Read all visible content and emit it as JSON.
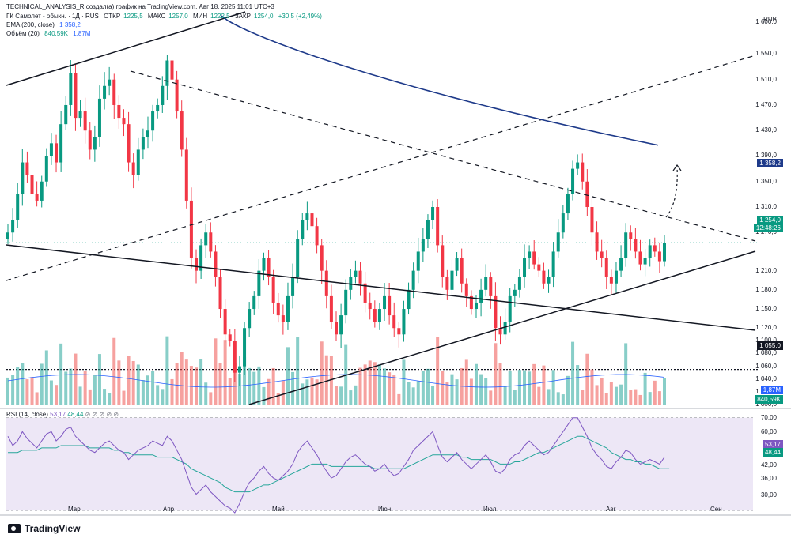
{
  "header": {
    "author_line": "TECHNICAL_ANALYSIS_R создал(а) график на TradingView.com, Авг 18, 2025 11:01 UTC+3",
    "symbol": "ГК Самолет - обыкн. · 1Д · RUS",
    "ohlc": {
      "open_label": "ОТКР",
      "open": "1225,5",
      "high_label": "МАКС",
      "high": "1257,0",
      "low_label": "МИН",
      "low": "1222,5",
      "close_label": "ЗАКР",
      "close": "1254,0",
      "change": "+30,5 (+2,49%)"
    },
    "ema_label": "EMA (200, close)",
    "ema_value": "1 358,2",
    "volume_label": "Объём (20)",
    "volume_value": "840,59K",
    "volume_ma": "1,87M"
  },
  "currency": "RUB",
  "price_axis": [
    "1 600,0",
    "1 550,0",
    "1 510,0",
    "1 470,0",
    "1 430,0",
    "1 390,0",
    "1 350,0",
    "1 310,0",
    "1 270,0",
    "1 210,0",
    "1 180,0",
    "1 150,0",
    "1 120,0",
    "1 100,0",
    "1 080,0",
    "1 060,0",
    "1 040,0",
    "1 020,0",
    "1 000,0"
  ],
  "badges": {
    "ema": "1 358,2",
    "last_price": "1 254,0",
    "countdown": "12:48:26",
    "level": "1 055,0",
    "vol_ma": "1,87M",
    "vol": "840,59K",
    "rsi": "53,17",
    "rsi_ma": "48,44"
  },
  "rsi": {
    "label": "RSI (14, close)",
    "value": "53,17",
    "ma": "48,44",
    "axis": [
      "70,00",
      "60,00",
      "53,17",
      "48,44",
      "42,00",
      "36,00",
      "30,00"
    ]
  },
  "time_axis": [
    "Мар",
    "Апр",
    "Май",
    "Июн",
    "Июл",
    "Авг",
    "Сен"
  ],
  "brand": "TradingView",
  "colors": {
    "up": "#089981",
    "down": "#f23645",
    "ema": "#1e3a8a",
    "rsi_band": "#ede7f6",
    "rsi_line": "#7e57c2"
  },
  "chart_data": {
    "type": "candlestick",
    "series_name": "ГК Самолет - обыкн.",
    "last_close": 1254.0,
    "ema200": 1358.2,
    "support_level": 1055.0,
    "x_labels": [
      "Мар",
      "Апр",
      "Май",
      "Июн",
      "Июл",
      "Авг",
      "Сен"
    ],
    "ylim": [
      1000,
      1620
    ],
    "closes": [
      1270,
      1290,
      1330,
      1380,
      1360,
      1330,
      1320,
      1350,
      1390,
      1410,
      1380,
      1440,
      1470,
      1520,
      1450,
      1460,
      1430,
      1400,
      1420,
      1480,
      1500,
      1510,
      1470,
      1450,
      1440,
      1380,
      1360,
      1400,
      1420,
      1430,
      1460,
      1470,
      1500,
      1540,
      1510,
      1460,
      1400,
      1320,
      1230,
      1210,
      1250,
      1270,
      1240,
      1200,
      1150,
      1110,
      1100,
      1050,
      1060,
      1120,
      1150,
      1170,
      1210,
      1230,
      1200,
      1160,
      1140,
      1130,
      1170,
      1200,
      1260,
      1290,
      1300,
      1280,
      1250,
      1210,
      1170,
      1130,
      1110,
      1140,
      1180,
      1200,
      1210,
      1190,
      1160,
      1150,
      1130,
      1150,
      1170,
      1140,
      1120,
      1110,
      1150,
      1180,
      1210,
      1240,
      1260,
      1290,
      1310,
      1250,
      1200,
      1180,
      1210,
      1230,
      1190,
      1170,
      1150,
      1160,
      1180,
      1200,
      1170,
      1120,
      1110,
      1130,
      1170,
      1180,
      1200,
      1230,
      1240,
      1220,
      1210,
      1190,
      1200,
      1240,
      1270,
      1300,
      1330,
      1370,
      1380,
      1350,
      1310,
      1270,
      1240,
      1230,
      1200,
      1190,
      1210,
      1230,
      1270,
      1260,
      1240,
      1220,
      1230,
      1250,
      1240,
      1225,
      1254
    ],
    "rsi_values": [
      62,
      58,
      60,
      64,
      61,
      59,
      57,
      60,
      63,
      64,
      60,
      62,
      65,
      66,
      62,
      60,
      58,
      56,
      55,
      57,
      59,
      60,
      58,
      56,
      55,
      52,
      54,
      56,
      57,
      58,
      60,
      59,
      58,
      62,
      60,
      56,
      52,
      46,
      40,
      37,
      39,
      41,
      38,
      36,
      34,
      32,
      31,
      29,
      33,
      38,
      42,
      44,
      47,
      49,
      46,
      44,
      43,
      45,
      47,
      50,
      55,
      58,
      60,
      57,
      54,
      50,
      47,
      44,
      45,
      48,
      51,
      53,
      54,
      52,
      50,
      49,
      47,
      48,
      50,
      47,
      45,
      46,
      49,
      52,
      56,
      58,
      60,
      62,
      64,
      58,
      53,
      51,
      53,
      55,
      52,
      50,
      48,
      50,
      52,
      54,
      51,
      47,
      46,
      48,
      52,
      54,
      55,
      58,
      60,
      58,
      56,
      54,
      55,
      58,
      61,
      64,
      67,
      70,
      70,
      66,
      62,
      57,
      54,
      52,
      49,
      48,
      51,
      53,
      56,
      55,
      52,
      50,
      51,
      52,
      51,
      50,
      53
    ],
    "rsi_ma_values": [
      55,
      55,
      55,
      56,
      56,
      56,
      56,
      57,
      57,
      57,
      57,
      58,
      58,
      58,
      58,
      58,
      58,
      57,
      57,
      57,
      57,
      57,
      56,
      56,
      55,
      55,
      54,
      54,
      54,
      54,
      54,
      53,
      53,
      53,
      53,
      52,
      51,
      50,
      48,
      47,
      46,
      45,
      44,
      43,
      42,
      40,
      39,
      38,
      38,
      38,
      38,
      39,
      40,
      41,
      41,
      42,
      43,
      44,
      45,
      46,
      47,
      48,
      49,
      50,
      50,
      50,
      50,
      49,
      49,
      49,
      49,
      49,
      49,
      49,
      49,
      49,
      48,
      48,
      48,
      48,
      48,
      48,
      48,
      49,
      50,
      51,
      52,
      53,
      54,
      54,
      54,
      54,
      54,
      54,
      53,
      53,
      52,
      52,
      52,
      52,
      52,
      51,
      50,
      50,
      50,
      51,
      51,
      52,
      53,
      54,
      55,
      55,
      56,
      57,
      58,
      59,
      60,
      61,
      62,
      62,
      61,
      60,
      59,
      58,
      57,
      55,
      54,
      53,
      52,
      52,
      51,
      51,
      50,
      50,
      49,
      48,
      48,
      48
    ]
  }
}
